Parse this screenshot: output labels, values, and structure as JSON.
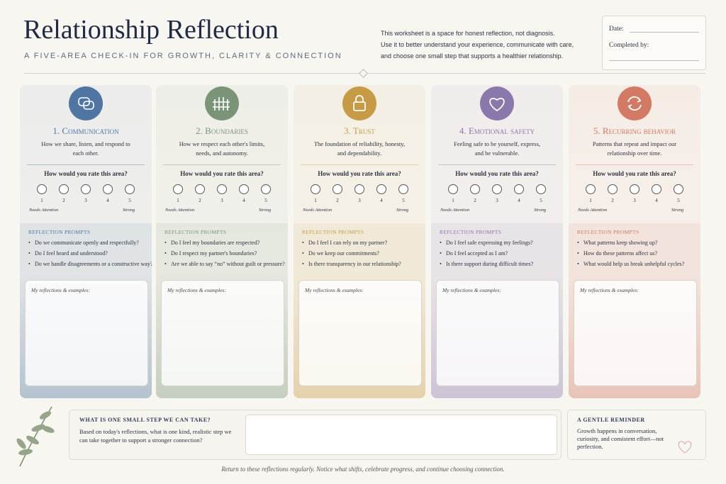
{
  "header": {
    "title": "Relationship Reflection",
    "subtitle": "A FIVE-AREA CHECK-IN FOR GROWTH, CLARITY & CONNECTION",
    "intro": [
      "This worksheet is a space for honest reflection, not diagnosis.",
      "Use it to better understand your experience, communicate with care,",
      "and choose one small step that supports a healthier relationship."
    ],
    "date_label": "Date:",
    "completed_label": "Completed by:"
  },
  "rating": {
    "question": "How would you rate this area?",
    "scale": [
      1,
      2,
      3,
      4,
      5
    ],
    "low_label": "Needs Attention",
    "high_label": "Strong"
  },
  "prompts_heading": "REFLECTION PROMPTS",
  "notes_label": "My reflections & examples:",
  "sections": [
    {
      "number": "1.",
      "title": "Communication",
      "description": "How we share, listen, and respond to each other.",
      "color": "#4f76a3",
      "prompts": [
        "Do we communicate openly and respectfully?",
        "Do I feel heard and understood?",
        "Do we handle disagreements or a constructive way?"
      ]
    },
    {
      "number": "2.",
      "title": "Boundaries",
      "description": "How we respect each other's limits, needs, and autonomy.",
      "color": "#7a9477",
      "prompts": [
        "Do I feel my boundaries are respected?",
        "Do I respect my partner's boundaries?",
        "Are we able to say “no” without guilt or pressure?"
      ]
    },
    {
      "number": "3.",
      "title": "Trust",
      "description": "The foundation of reliability, honesty, and dependability.",
      "color": "#c79b45",
      "prompts": [
        "Do I feel I can rely on my partner?",
        "Do we keep our commitments?",
        "Is there transparency in our relationship?"
      ]
    },
    {
      "number": "4.",
      "title": "Emotional safety",
      "description": "Feeling safe to be yourself, express, and be vulnerable.",
      "color": "#8a78ad",
      "prompts": [
        "Do I feel safe expressing my feelings?",
        "Do I feel accepted as I am?",
        "Is there support during difficult times?"
      ]
    },
    {
      "number": "5.",
      "title": "Recurring behavior",
      "description": "Patterns that repeat and impact our relationship over time.",
      "color": "#d27a63",
      "prompts": [
        "What patterns keep showing up?",
        "How do these patterns affect us?",
        "What would help us break unhelpful cycles?"
      ]
    }
  ],
  "footer": {
    "step_heading": "WHAT IS ONE SMALL STEP WE CAN TAKE?",
    "step_text": "Based on today's reflections, what is one kind, realistic step we can take together to support a stronger connection?",
    "reminder_heading": "A GENTLE REMINDER",
    "reminder_text": "Growth happens in conversation, curiosity, and consistent effort—not perfection.",
    "closing": "Return to these reflections regularly. Notice what shifts, celebrate progress, and continue choosing connection."
  }
}
